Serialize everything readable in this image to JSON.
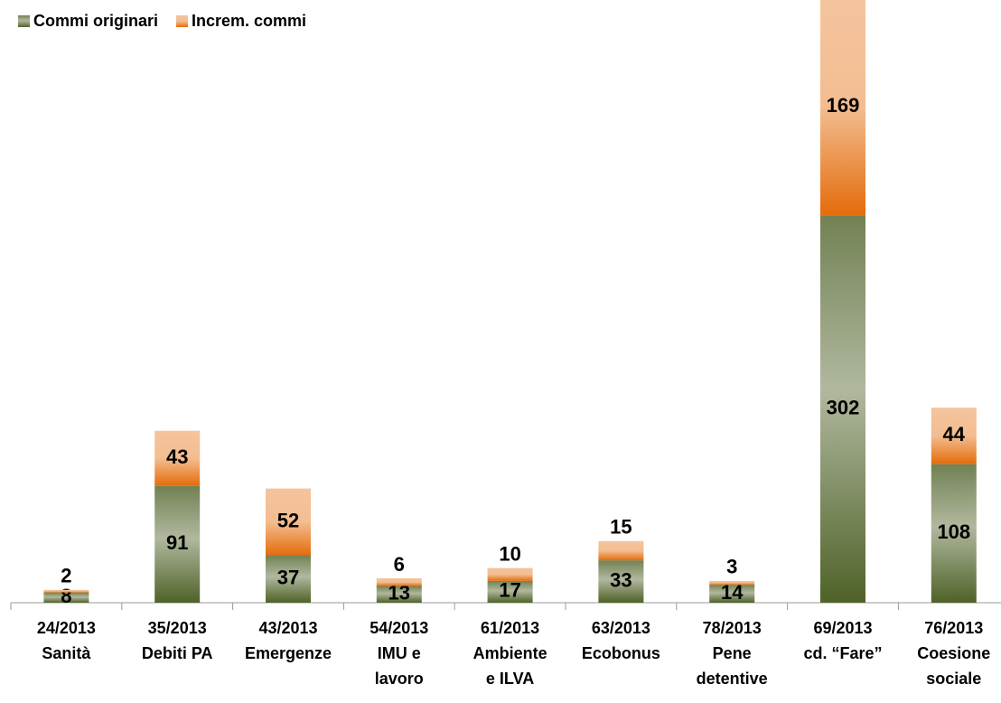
{
  "chart_data": {
    "type": "stacked-bar",
    "categories": [
      [
        "24/2013",
        "Sanità"
      ],
      [
        "35/2013",
        "Debiti PA"
      ],
      [
        "43/2013",
        "Emergenze"
      ],
      [
        "54/2013",
        "IMU e",
        "lavoro"
      ],
      [
        "61/2013",
        "Ambiente",
        "e ILVA"
      ],
      [
        "63/2013",
        "Ecobonus"
      ],
      [
        "78/2013",
        "Pene",
        "detentive"
      ],
      [
        "69/2013",
        "cd. “Fare”"
      ],
      [
        "76/2013",
        "Coesione",
        "sociale"
      ]
    ],
    "series": [
      {
        "name": "Commi originari",
        "color": "#4f6228",
        "values": [
          8,
          91,
          37,
          13,
          17,
          33,
          14,
          302,
          108
        ]
      },
      {
        "name": "Increm. commi",
        "color": "#e46c0a",
        "values": [
          2,
          43,
          52,
          6,
          10,
          15,
          3,
          169,
          44
        ]
      }
    ],
    "legend": "top-left"
  }
}
